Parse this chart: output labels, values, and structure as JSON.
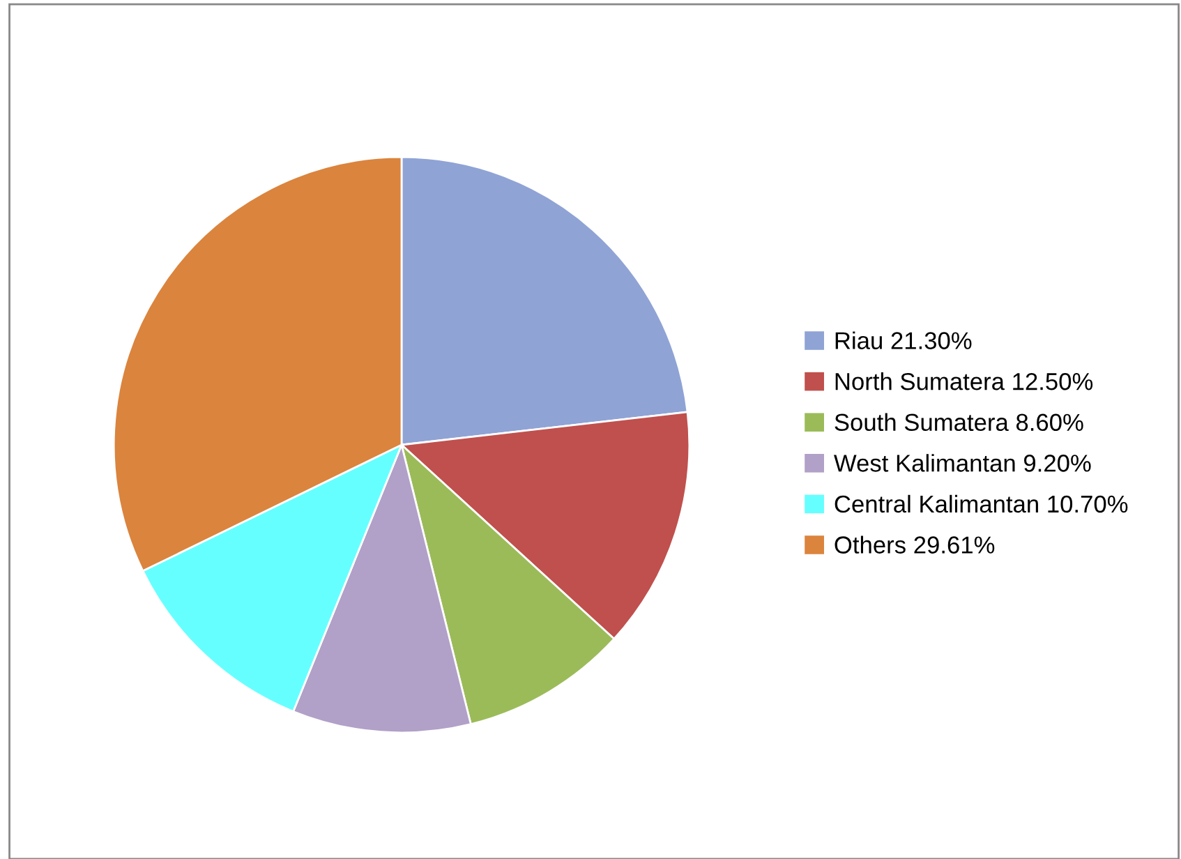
{
  "chart_data": {
    "type": "pie",
    "categories": [
      "Riau 21.30%",
      "North Sumatera 12.50%",
      "South Sumatera 8.60%",
      "West Kalimantan 9.20%",
      "Central Kalimantan 10.70%",
      "Others 29.61%"
    ],
    "values": [
      21.3,
      12.5,
      8.6,
      9.2,
      10.7,
      29.61
    ],
    "colors": [
      "#8fa3d5",
      "#c0504d",
      "#9bbb59",
      "#b1a0c7",
      "#66ffff",
      "#db843d"
    ],
    "legend": "right"
  }
}
